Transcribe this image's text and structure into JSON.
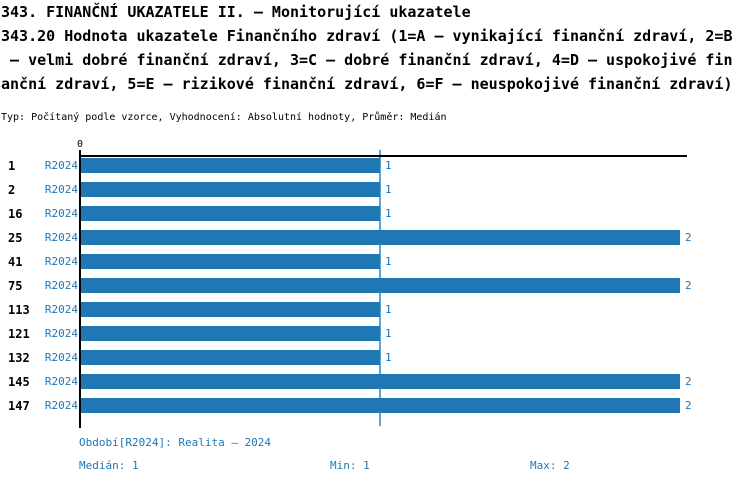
{
  "header": {
    "title_lines": [
      "343. FINANČNÍ UKAZATELE II. – Monitorující ukazatele",
      "343.20 Hodnota ukazatele Finančního zdraví (1=A – vynikající finanční zdraví, 2=B",
      " – velmi dobré finanční zdraví, 3=C – dobré finanční zdraví, 4=D – uspokojivé fin",
      "anční zdraví, 5=E – rizikové finanční zdraví, 6=F – neuspokojivé finanční zdraví)"
    ],
    "meta": "Typ: Počítaný podle vzorce, Vyhodnocení: Absolutní hodnoty, Průměr: Medián"
  },
  "chart_data": {
    "type": "bar",
    "orientation": "horizontal",
    "title": "343.20 Hodnota ukazatele Finančního zdraví",
    "axis_tick_label": "0",
    "categories": [
      "1",
      "2",
      "16",
      "25",
      "41",
      "75",
      "113",
      "121",
      "132",
      "145",
      "147"
    ],
    "period_label": "R2024",
    "values": [
      1,
      1,
      1,
      2,
      1,
      2,
      1,
      1,
      1,
      2,
      2
    ],
    "value_labels": [
      "1",
      "1",
      "1",
      "2",
      "1",
      "2",
      "1",
      "1",
      "1",
      "2",
      "2"
    ],
    "xlim": [
      0,
      2
    ],
    "median_line_value": 1,
    "grid": false,
    "colors": {
      "bar": "#1f77b4",
      "median_line": "#61a3d2",
      "label_blue": "#1f77b4"
    }
  },
  "footer": {
    "period": "Období[R2024]: Realita – 2024",
    "median_label": "Medián: 1",
    "min_label": "Min: 1",
    "max_label": "Max: 2"
  }
}
